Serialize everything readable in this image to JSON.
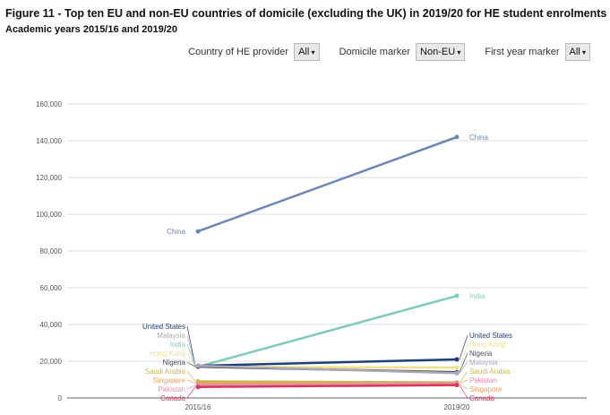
{
  "title": "Figure 11 - Top ten EU and non-EU countries of domicile (excluding the UK) in 2019/20 for HE student enrolments",
  "subtitle": "Academic years 2015/16 and 2019/20",
  "filters": [
    {
      "label": "Country of HE provider",
      "value": "All"
    },
    {
      "label": "Domicile marker",
      "value": "Non-EU"
    },
    {
      "label": "First year marker",
      "value": "All"
    }
  ],
  "chart_data": {
    "type": "line",
    "categories": [
      "2015/16",
      "2019/20"
    ],
    "ylim": [
      0,
      160000
    ],
    "yticks": [
      0,
      20000,
      40000,
      60000,
      80000,
      100000,
      120000,
      140000,
      160000
    ],
    "ytick_labels": [
      "0",
      "20,000",
      "40,000",
      "60,000",
      "80,000",
      "100,000",
      "120,000",
      "140,000",
      "160,000"
    ],
    "grid": true,
    "series": [
      {
        "name": "China",
        "values": [
          90700,
          142000
        ],
        "color": "#6b87b8"
      },
      {
        "name": "India",
        "values": [
          17000,
          55600
        ],
        "color": "#7ecbbc"
      },
      {
        "name": "United States",
        "values": [
          17500,
          21000
        ],
        "color": "#1f3d7a"
      },
      {
        "name": "Hong Kong",
        "values": [
          17000,
          16500
        ],
        "color": "#efe08c"
      },
      {
        "name": "Nigeria",
        "values": [
          17000,
          14000
        ],
        "color": "#4a4a5a"
      },
      {
        "name": "Malaysia",
        "values": [
          17500,
          13500
        ],
        "color": "#a8a8b8"
      },
      {
        "name": "Saudi Arabia",
        "values": [
          9000,
          8500
        ],
        "color": "#c8b84a"
      },
      {
        "name": "Singapore",
        "values": [
          8000,
          7500
        ],
        "color": "#e8a060"
      },
      {
        "name": "Pakistan",
        "values": [
          7000,
          8000
        ],
        "color": "#e890a8"
      },
      {
        "name": "Canada",
        "values": [
          6000,
          7000
        ],
        "color": "#d4385a"
      }
    ]
  }
}
